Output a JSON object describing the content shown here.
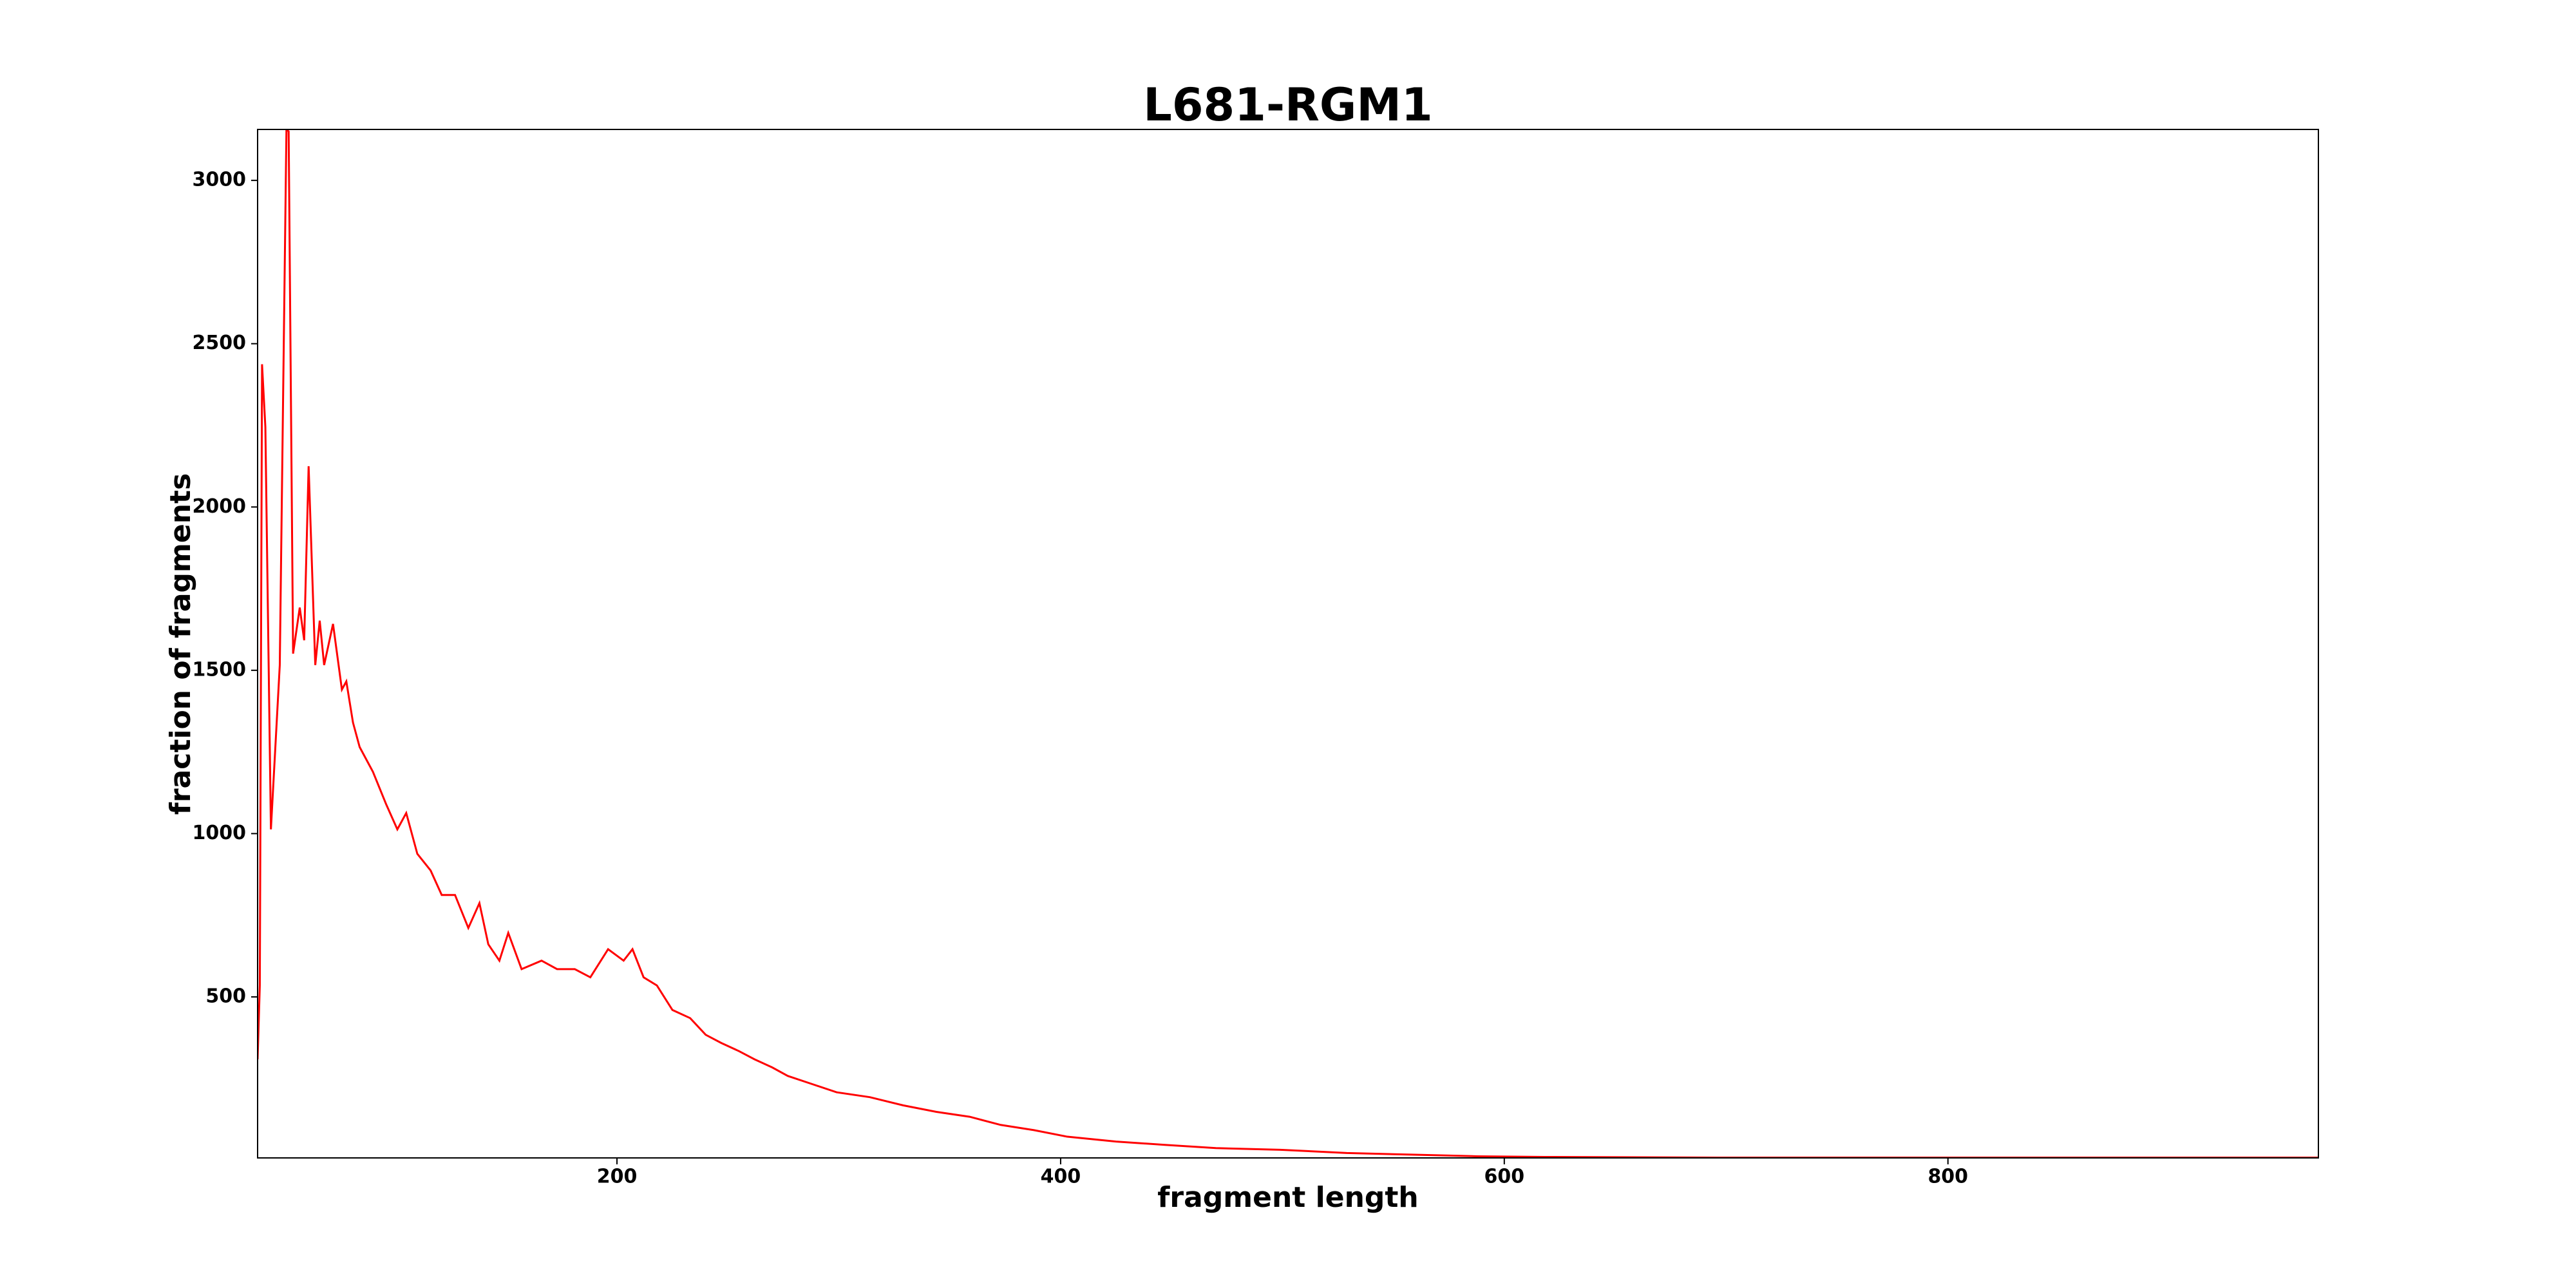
{
  "chart_data": {
    "type": "line",
    "title": "L681-RGM1",
    "x_label": "fragment length",
    "y_label": "fraction of fragments",
    "x": [
      38,
      39,
      40,
      41.5,
      44,
      48,
      51,
      52,
      54,
      57,
      59,
      61,
      64,
      66,
      68,
      72,
      76,
      78,
      81,
      84,
      90,
      96,
      101,
      105,
      110,
      116,
      121,
      127,
      133,
      138,
      142,
      147,
      151,
      157,
      166,
      173,
      181,
      188,
      196,
      203,
      207,
      212,
      218,
      225,
      233,
      240,
      247,
      255,
      262,
      270,
      277,
      288,
      299,
      314,
      329,
      344,
      359,
      373,
      388,
      403,
      425,
      447,
      470,
      499,
      529,
      558,
      588,
      618,
      700,
      800,
      900,
      967
    ],
    "series": [
      {
        "name": "L681-RGM1",
        "color": "#ff0000",
        "values": [
          309,
          535,
          2437,
          2245,
          1013,
          1516,
          3156,
          3150,
          1551,
          1692,
          1592,
          2125,
          1516,
          1652,
          1516,
          1642,
          1441,
          1466,
          1340,
          1265,
          1189,
          1089,
          1013,
          1063,
          938,
          887,
          812,
          812,
          711,
          787,
          661,
          611,
          696,
          585,
          611,
          585,
          585,
          560,
          646,
          611,
          646,
          560,
          535,
          460,
          435,
          384,
          359,
          334,
          309,
          284,
          258,
          233,
          208,
          193,
          168,
          148,
          133,
          108,
          92,
          72,
          57,
          47,
          37,
          32,
          22,
          17,
          12,
          10,
          8,
          8,
          8,
          8
        ]
      }
    ],
    "xlim": [
      38,
      967
    ],
    "ylim": [
      7,
      3156
    ],
    "xticks": [
      200,
      400,
      600,
      800
    ],
    "yticks": [
      500,
      1000,
      1500,
      2000,
      2500,
      3000
    ],
    "grid": false
  }
}
